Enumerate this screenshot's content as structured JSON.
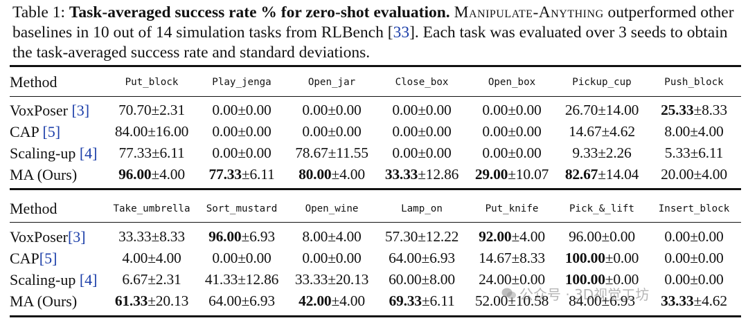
{
  "caption": {
    "label": "Table 1: ",
    "bold_title": "Task-averaged success rate % for zero-shot evaluation.",
    "method_name": "Manipulate-Anything",
    "text_part1": " outperformed other baselines in 10 out of 14 simulation tasks from RLBench [",
    "ref": "33",
    "text_part2": "]. Each task was evaluated over 3 seeds to obtain the task-averaged success rate and standard deviations."
  },
  "tables": [
    {
      "method_header": "Method",
      "tasks": [
        "Put_block",
        "Play_jenga",
        "Open_jar",
        "Close_box",
        "Open_box",
        "Pickup_cup",
        "Push_block"
      ],
      "rows": [
        {
          "method": "VoxPoser ",
          "cite": "[3]",
          "cells": [
            {
              "mean": "70.70",
              "std": "±2.31",
              "bold": false
            },
            {
              "mean": "0.00",
              "std": "±0.00",
              "bold": false
            },
            {
              "mean": "0.00",
              "std": "±0.00",
              "bold": false
            },
            {
              "mean": "0.00",
              "std": "±0.00",
              "bold": false
            },
            {
              "mean": "0.00",
              "std": "±0.00",
              "bold": false
            },
            {
              "mean": "26.70",
              "std": "±14.00",
              "bold": false
            },
            {
              "mean": "25.33",
              "std": "±8.33",
              "bold": true
            }
          ]
        },
        {
          "method": "CAP ",
          "cite": "[5]",
          "cells": [
            {
              "mean": "84.00",
              "std": "±16.00",
              "bold": false
            },
            {
              "mean": "0.00",
              "std": "±0.00",
              "bold": false
            },
            {
              "mean": "0.00",
              "std": "±0.00",
              "bold": false
            },
            {
              "mean": "0.00",
              "std": "±0.00",
              "bold": false
            },
            {
              "mean": "0.00",
              "std": "±0.00",
              "bold": false
            },
            {
              "mean": "14.67",
              "std": "±4.62",
              "bold": false
            },
            {
              "mean": "8.00",
              "std": "±4.00",
              "bold": false
            }
          ]
        },
        {
          "method": "Scaling-up ",
          "cite": "[4]",
          "cells": [
            {
              "mean": "77.33",
              "std": "±6.11",
              "bold": false
            },
            {
              "mean": "0.00",
              "std": "±0.00",
              "bold": false
            },
            {
              "mean": "78.67",
              "std": "±11.55",
              "bold": false
            },
            {
              "mean": "0.00",
              "std": "±0.00",
              "bold": false
            },
            {
              "mean": "0.00",
              "std": "±0.00",
              "bold": false
            },
            {
              "mean": "9.33",
              "std": "±2.26",
              "bold": false
            },
            {
              "mean": "5.33",
              "std": "±6.11",
              "bold": false
            }
          ]
        },
        {
          "method": "MA (Ours)",
          "cite": "",
          "cells": [
            {
              "mean": "96.00",
              "std": "±4.00",
              "bold": true
            },
            {
              "mean": "77.33",
              "std": "±6.11",
              "bold": true
            },
            {
              "mean": "80.00",
              "std": "±4.00",
              "bold": true
            },
            {
              "mean": "33.33",
              "std": "±12.86",
              "bold": true
            },
            {
              "mean": "29.00",
              "std": "±10.07",
              "bold": true
            },
            {
              "mean": "82.67",
              "std": "±14.04",
              "bold": true
            },
            {
              "mean": "20.00",
              "std": "±4.00",
              "bold": false
            }
          ]
        }
      ]
    },
    {
      "method_header": "Method",
      "tasks": [
        "Take_umbrella",
        "Sort_mustard",
        "Open_wine",
        "Lamp_on",
        "Put_knife",
        "Pick_&_lift",
        "Insert_block"
      ],
      "rows": [
        {
          "method": "VoxPoser",
          "cite": "[3]",
          "cells": [
            {
              "mean": "33.33",
              "std": "±8.33",
              "bold": false
            },
            {
              "mean": "96.00",
              "std": "±6.93",
              "bold": true
            },
            {
              "mean": "8.00",
              "std": "±4.00",
              "bold": false
            },
            {
              "mean": "57.30",
              "std": "±12.22",
              "bold": false
            },
            {
              "mean": "92.00",
              "std": "±4.00",
              "bold": true
            },
            {
              "mean": "96.00",
              "std": "±0.00",
              "bold": false
            },
            {
              "mean": "0.00",
              "std": "±0.00",
              "bold": false
            }
          ]
        },
        {
          "method": "CAP",
          "cite": "[5]",
          "cells": [
            {
              "mean": "4.00",
              "std": "±4.00",
              "bold": false
            },
            {
              "mean": "0.00",
              "std": "±0.00",
              "bold": false
            },
            {
              "mean": "0.00",
              "std": "±0.00",
              "bold": false
            },
            {
              "mean": "64.00",
              "std": "±6.93",
              "bold": false
            },
            {
              "mean": "14.67",
              "std": "±8.33",
              "bold": false
            },
            {
              "mean": "100.00",
              "std": "±0.00",
              "bold": true
            },
            {
              "mean": "0.00",
              "std": "±0.00",
              "bold": false
            }
          ]
        },
        {
          "method": "Scaling-up ",
          "cite": "[4]",
          "cells": [
            {
              "mean": "6.67",
              "std": "±2.31",
              "bold": false
            },
            {
              "mean": "41.33",
              "std": "±12.86",
              "bold": false
            },
            {
              "mean": "33.33",
              "std": "±20.13",
              "bold": false
            },
            {
              "mean": "60.00",
              "std": "±8.00",
              "bold": false
            },
            {
              "mean": "24.00",
              "std": "±0.00",
              "bold": false
            },
            {
              "mean": "100.00",
              "std": "±0.00",
              "bold": true
            },
            {
              "mean": "0.00",
              "std": "±0.00",
              "bold": false
            }
          ]
        },
        {
          "method": "MA (Ours)",
          "cite": "",
          "cells": [
            {
              "mean": "61.33",
              "std": "±20.13",
              "bold": true
            },
            {
              "mean": "64.00",
              "std": "±6.93",
              "bold": false
            },
            {
              "mean": "42.00",
              "std": "±4.00",
              "bold": true
            },
            {
              "mean": "69.33",
              "std": "±6.11",
              "bold": true
            },
            {
              "mean": "52.00",
              "std": "±10.58",
              "bold": false
            },
            {
              "mean": "84.00",
              "std": "±6.93",
              "bold": false
            },
            {
              "mean": "33.33",
              "std": "±4.62",
              "bold": true
            }
          ]
        }
      ]
    }
  ],
  "watermark": "公众号 · 3D视觉工坊",
  "colors": {
    "citation": "#1a3da8",
    "text": "#111111"
  },
  "icons": {
    "watermark": "wechat-logo-icon"
  }
}
